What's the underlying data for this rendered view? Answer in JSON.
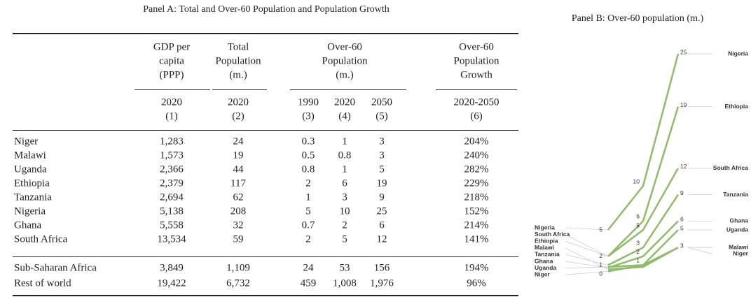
{
  "panel_a": {
    "title": "Panel A: Total and Over-60 Population and Population Growth",
    "groups": [
      [
        "GDP per",
        "capita",
        "(PPP)"
      ],
      [
        "Total",
        "Population",
        "(m.)"
      ],
      [
        "Over-60",
        "Population",
        "(m.)"
      ],
      [
        "Over-60",
        "Population",
        "Growth"
      ]
    ],
    "years": [
      "2020",
      "2020",
      "1990",
      "2020",
      "2050",
      "2020-2050"
    ],
    "column_numbers": [
      "(1)",
      "(2)",
      "(3)",
      "(4)",
      "(5)",
      "(6)"
    ],
    "rows": [
      [
        "Niger",
        "1,283",
        "24",
        "0.3",
        "1",
        "3",
        "204%"
      ],
      [
        "Malawi",
        "1,573",
        "19",
        "0.5",
        "0.8",
        "3",
        "240%"
      ],
      [
        "Uganda",
        "2,366",
        "44",
        "0.8",
        "1",
        "5",
        "282%"
      ],
      [
        "Ethiopia",
        "2,379",
        "117",
        "2",
        "6",
        "19",
        "229%"
      ],
      [
        "Tanzania",
        "2,694",
        "62",
        "1",
        "3",
        "9",
        "218%"
      ],
      [
        "Nigeria",
        "5,138",
        "208",
        "5",
        "10",
        "25",
        "152%"
      ],
      [
        "Ghana",
        "5,558",
        "32",
        "0.7",
        "2",
        "6",
        "214%"
      ],
      [
        "South Africa",
        "13,534",
        "59",
        "2",
        "5",
        "12",
        "141%"
      ]
    ],
    "summary_rows": [
      [
        "Sub-Saharan Africa",
        "3,849",
        "1,109",
        "24",
        "53",
        "156",
        "194%"
      ],
      [
        "Rest of world",
        "19,422",
        "6,732",
        "459",
        "1,008",
        "1,976",
        "96%"
      ]
    ]
  },
  "panel_b": {
    "title": "Panel B: Over-60 population (m.)",
    "color": "#8dbd68",
    "series": [
      {
        "name": "Niger",
        "values": [
          0.3,
          1,
          3
        ]
      },
      {
        "name": "Malawi",
        "values": [
          0.5,
          0.8,
          3
        ]
      },
      {
        "name": "Uganda",
        "values": [
          0.8,
          1,
          5
        ]
      },
      {
        "name": "Ethiopia",
        "values": [
          2,
          6,
          19
        ]
      },
      {
        "name": "Tanzania",
        "values": [
          1,
          3,
          9
        ]
      },
      {
        "name": "Nigeria",
        "values": [
          5,
          10,
          25
        ]
      },
      {
        "name": "Ghana",
        "values": [
          0.7,
          2,
          6
        ]
      },
      {
        "name": "South Africa",
        "values": [
          2,
          5,
          12
        ]
      }
    ],
    "left_labels": [
      "Nigeria",
      "South Africa",
      "Ethiopia",
      "Malawi",
      "Tanzania",
      "Ghana",
      "Uganda",
      "Niger"
    ],
    "right_labels": [
      "Nigeria",
      "Ethiopia",
      "South Africa",
      "Tanzania",
      "Ghana",
      "Uganda",
      "Malawi",
      "Niger"
    ],
    "labels_1990": [
      5,
      2,
      1,
      0
    ],
    "labels_2020": [
      10,
      6,
      5,
      3,
      2,
      1
    ],
    "labels_2050": [
      25,
      19,
      12,
      9,
      6,
      5,
      3
    ]
  }
}
